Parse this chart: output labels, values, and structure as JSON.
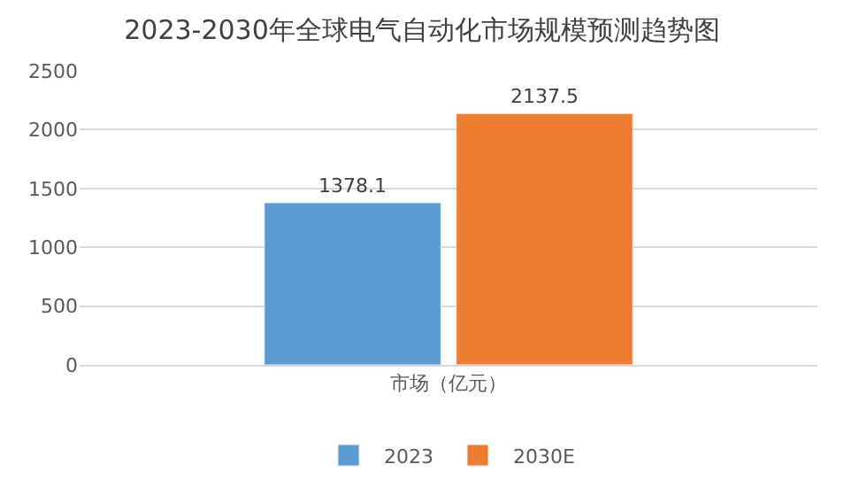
{
  "chart_data": {
    "type": "bar",
    "title": "2023-2030年全球电气自动化市场规模预测趋势图",
    "categories": [
      "市场（亿元）"
    ],
    "series": [
      {
        "name": "2023",
        "color": "#5b9bd5",
        "values": [
          1378.1
        ]
      },
      {
        "name": "2030E",
        "color": "#ed7d31",
        "values": [
          2137.5
        ]
      }
    ],
    "ylim": [
      0,
      2500
    ],
    "yticks": [
      0,
      500,
      1000,
      1500,
      2000,
      2500
    ],
    "grid": "y",
    "legend": "bottom",
    "data_labels": true
  }
}
